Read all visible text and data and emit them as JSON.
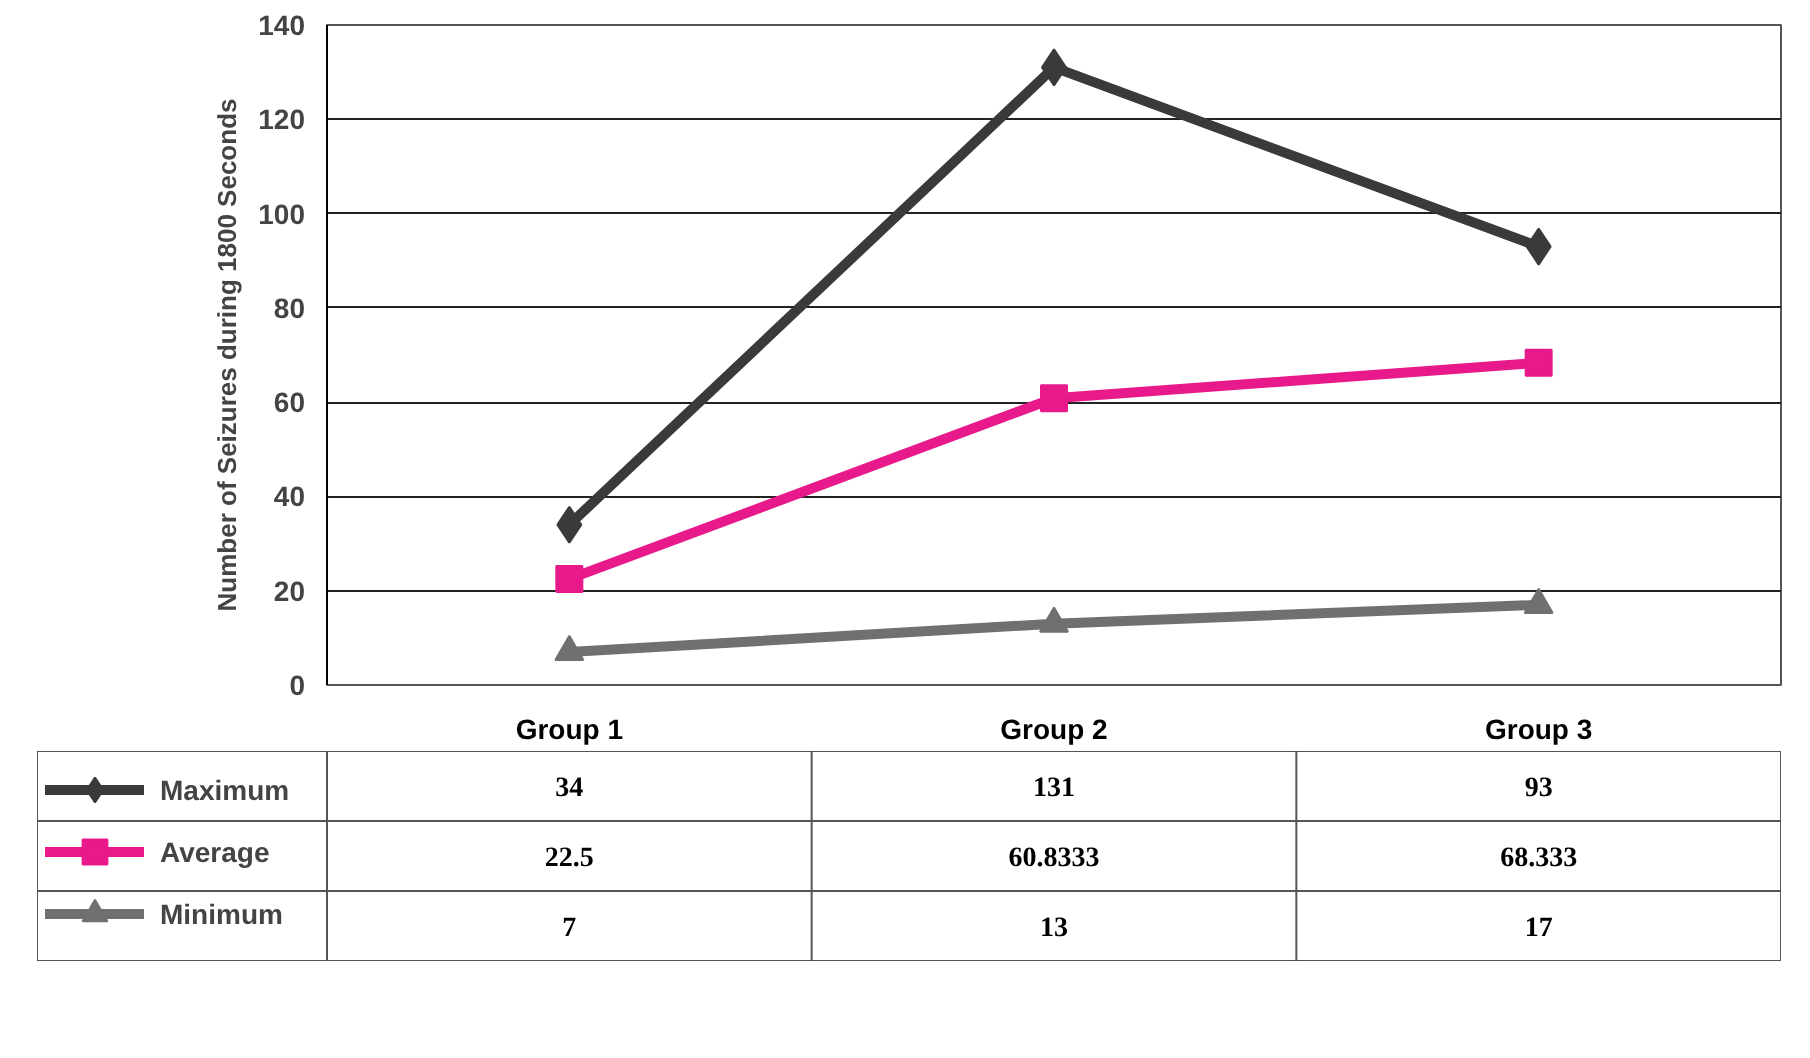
{
  "chart_data": {
    "type": "line",
    "ylabel": "Number of Seizures during 1800 Seconds",
    "categories": [
      "Group 1",
      "Group 2",
      "Group 3"
    ],
    "series": [
      {
        "name": "Maximum",
        "color": "#3a3a3a",
        "marker": "diamond",
        "values": [
          34,
          131,
          93
        ]
      },
      {
        "name": "Average",
        "color": "#e8198b",
        "marker": "square",
        "values": [
          22.5,
          60.8333,
          68.333
        ]
      },
      {
        "name": "Minimum",
        "color": "#707070",
        "marker": "triangle",
        "values": [
          7,
          13,
          17
        ]
      }
    ],
    "ylim": [
      0,
      140
    ],
    "yticks": [
      0,
      20,
      40,
      60,
      80,
      100,
      120,
      140
    ],
    "grid": "y",
    "legend": "bottom",
    "data_labels": true
  }
}
